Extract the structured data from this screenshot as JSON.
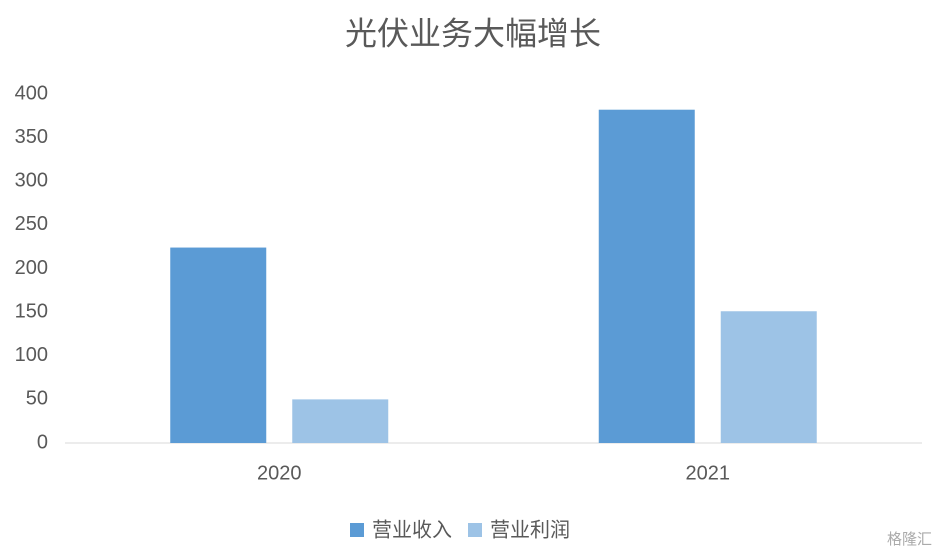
{
  "chart_data": {
    "type": "bar",
    "title": "光伏业务大幅增长",
    "categories": [
      "2020",
      "2021"
    ],
    "series": [
      {
        "name": "营业收入",
        "color": "#5b9bd5",
        "values": [
          224,
          382
        ]
      },
      {
        "name": "营业利润",
        "color": "#9dc3e6",
        "values": [
          50,
          151
        ]
      }
    ],
    "ylim": [
      0,
      400
    ],
    "yticks": [
      0,
      50,
      100,
      150,
      200,
      250,
      300,
      350,
      400
    ],
    "grid": false,
    "legend": "bottom",
    "watermark": "格隆汇"
  }
}
